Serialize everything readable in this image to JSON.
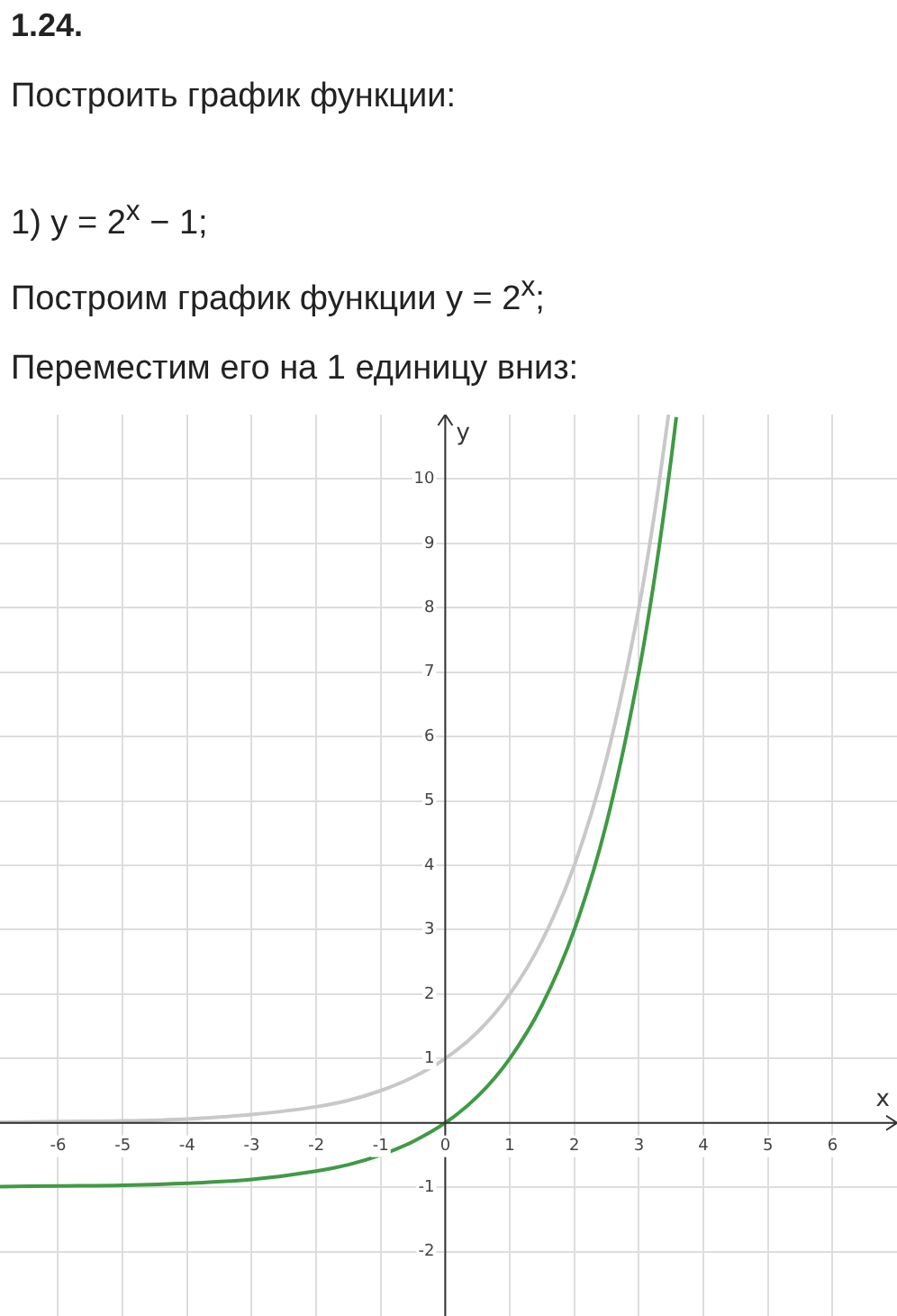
{
  "chart_data": {
    "type": "line",
    "title": "1.24.",
    "annotations": [
      "Построить график функции:",
      "1) y = 2$^{x}$ − 1;",
      "Построим график функции y = 2$^{x}$;",
      "Переместим его на 1 единицу вниз:"
    ],
    "xlabel": "x",
    "ylabel": "y",
    "series": [
      {
        "color": "#c8c8c8",
        "x": [
          -6.9,
          -6,
          -5,
          -4,
          -3,
          -2,
          -1.5,
          -1,
          -0.5,
          0,
          0.5,
          1,
          1.5,
          2,
          2.5,
          3,
          3.25,
          3.46
        ],
        "values": [
          0.01,
          0.02,
          0.03,
          0.06,
          0.13,
          0.25,
          0.35,
          0.5,
          0.71,
          1,
          1.41,
          2,
          2.83,
          4,
          5.66,
          8,
          9.51,
          11
        ]
      },
      {
        "color": "#3f9a44",
        "x": [
          -6.9,
          -6,
          -5,
          -4,
          -3,
          -2,
          -1.5,
          -1,
          -0.5,
          0,
          0.5,
          1,
          1.5,
          2,
          2.5,
          3,
          3.25,
          3.5,
          3.58
        ],
        "values": [
          -0.99,
          -0.98,
          -0.97,
          -0.94,
          -0.88,
          -0.75,
          -0.65,
          -0.5,
          -0.29,
          0,
          0.41,
          1,
          1.83,
          3,
          4.66,
          7,
          8.51,
          10.31,
          10.96
        ]
      }
    ],
    "xlim": [
      -6.9,
      7
    ],
    "ylim": [
      -3,
      11
    ],
    "xticks": [
      -6,
      -5,
      -4,
      -3,
      -2,
      -1,
      0,
      1,
      2,
      3,
      4,
      5,
      6
    ],
    "yticks": [
      -2,
      -1,
      {
        "value": 0,
        "label": null
      },
      1,
      2,
      3,
      4,
      5,
      6,
      7,
      8,
      9,
      10
    ],
    "grid": true,
    "marker": "none",
    "line_style": "solid",
    "legend": false
  }
}
